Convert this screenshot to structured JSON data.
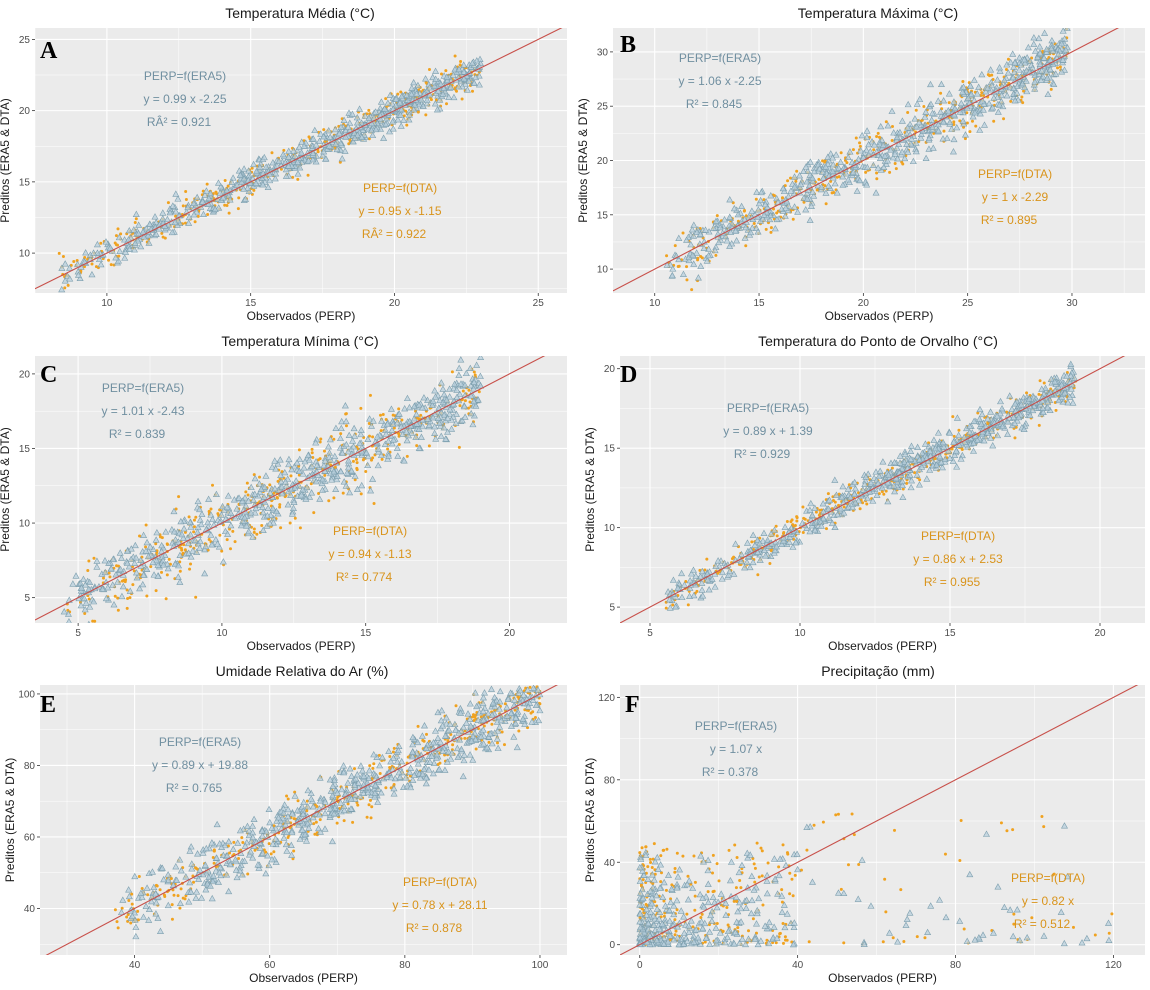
{
  "figure": {
    "x_axis_label": "Observados (PERP)",
    "y_axis_label": "Preditos (ERA5 & DTA)",
    "colors": {
      "era5_fill": "#b8cfdc",
      "era5_stroke": "#7d9fae",
      "era5_text": "#708fa0",
      "dta": "#f0a21f",
      "dta_text": "#d9941c",
      "line": "#c8504a",
      "panel_bg": "#ebebeb",
      "grid": "#ffffff"
    }
  },
  "chart_data": [
    {
      "panel": "A",
      "title": "Temperatura Média (°C)",
      "type": "scatter",
      "xlim": [
        7.5,
        26
      ],
      "ylim": [
        7.2,
        25.8
      ],
      "xticks": [
        "10",
        "15",
        "20",
        "25"
      ],
      "yticks": [
        "10",
        "15",
        "20",
        "25"
      ],
      "xtick_vals": [
        10,
        15,
        20,
        25
      ],
      "ytick_vals": [
        10,
        15,
        20,
        25
      ],
      "data_range": [
        8.3,
        23
      ],
      "spread_era5": 0.55,
      "spread_dta": 0.6,
      "era5": {
        "label": "PERP=f(ERA5)",
        "equation": "y = 0.99 x  -2.25",
        "r2": "RÂ² =  0.921",
        "slope": 0.99,
        "intercept": -2.25
      },
      "dta": {
        "label": "PERP=f(DTA)",
        "equation": "y = 0.95 x  -1.15",
        "r2": "RÂ² =  0.922",
        "slope": 0.95,
        "intercept": -1.15
      }
    },
    {
      "panel": "B",
      "title": "Temperatura Máxima (°C)",
      "type": "scatter",
      "xlim": [
        8,
        33.5
      ],
      "ylim": [
        7.8,
        32.2
      ],
      "xticks": [
        "10",
        "15",
        "20",
        "25",
        "30"
      ],
      "yticks": [
        "10",
        "15",
        "20",
        "25",
        "30"
      ],
      "xtick_vals": [
        10,
        15,
        20,
        25,
        30
      ],
      "ytick_vals": [
        10,
        15,
        20,
        25,
        30
      ],
      "data_range": [
        10.5,
        29.8
      ],
      "spread_era5": 1.2,
      "spread_dta": 1.1,
      "era5": {
        "label": "PERP=f(ERA5)",
        "equation": "y = 1.06 x  -2.25",
        "r2": "R² =  0.845",
        "slope": 1.06,
        "intercept": -2.25
      },
      "dta": {
        "label": "PERP=f(DTA)",
        "equation": "y = 1 x  -2.29",
        "r2": "R² =  0.895",
        "slope": 1.0,
        "intercept": -2.29
      }
    },
    {
      "panel": "C",
      "title": "Temperatura Mínima (°C)",
      "type": "scatter",
      "xlim": [
        3.5,
        22
      ],
      "ylim": [
        3.3,
        21.2
      ],
      "xticks": [
        "5",
        "10",
        "15",
        "20"
      ],
      "yticks": [
        "5",
        "10",
        "15",
        "20"
      ],
      "xtick_vals": [
        5,
        10,
        15,
        20
      ],
      "ytick_vals": [
        5,
        10,
        15,
        20
      ],
      "data_range": [
        4.5,
        19
      ],
      "spread_era5": 1.0,
      "spread_dta": 1.2,
      "era5": {
        "label": "PERP=f(ERA5)",
        "equation": "y = 1.01 x  -2.43",
        "r2": "R² =  0.839",
        "slope": 1.01,
        "intercept": -2.43
      },
      "dta": {
        "label": "PERP=f(DTA)",
        "equation": "y = 0.94 x  -1.13",
        "r2": "R² =  0.774",
        "slope": 0.94,
        "intercept": -1.13
      }
    },
    {
      "panel": "D",
      "title": "Temperatura do Ponto de Orvalho (°C)",
      "type": "scatter",
      "xlim": [
        4,
        21.5
      ],
      "ylim": [
        4,
        20.8
      ],
      "xticks": [
        "5",
        "10",
        "15",
        "20"
      ],
      "yticks": [
        "5",
        "10",
        "15",
        "20"
      ],
      "xtick_vals": [
        5,
        10,
        15,
        20
      ],
      "ytick_vals": [
        5,
        10,
        15,
        20
      ],
      "data_range": [
        5.5,
        19.2
      ],
      "spread_era5": 0.55,
      "spread_dta": 0.5,
      "era5": {
        "label": "PERP=f(ERA5)",
        "equation": "y = 0.89 x + 1.39",
        "r2": "R² =  0.929",
        "slope": 0.89,
        "intercept": 1.39
      },
      "dta": {
        "label": "PERP=f(DTA)",
        "equation": "y = 0.86 x + 2.53",
        "r2": "R² =  0.955",
        "slope": 0.86,
        "intercept": 2.53
      }
    },
    {
      "panel": "E",
      "title": "Umidade Relativa do Ar (%)",
      "type": "scatter",
      "xlim": [
        26,
        104
      ],
      "ylim": [
        27,
        102.5
      ],
      "xticks": [
        "40",
        "60",
        "80",
        "100"
      ],
      "yticks": [
        "40",
        "60",
        "80",
        "100"
      ],
      "xtick_vals": [
        40,
        60,
        80,
        100
      ],
      "ytick_vals": [
        40,
        60,
        80,
        100
      ],
      "data_range": [
        37,
        100
      ],
      "spread_era5": 4.0,
      "spread_dta": 3.5,
      "era5": {
        "label": "PERP=f(ERA5)",
        "equation": "y = 0.89 x + 19.88",
        "r2": "R² =  0.765",
        "slope": 0.89,
        "intercept": 19.88
      },
      "dta": {
        "label": "PERP=f(DTA)",
        "equation": "y = 0.78 x + 28.11",
        "r2": "R² =  0.878",
        "slope": 0.78,
        "intercept": 28.11
      }
    },
    {
      "panel": "F",
      "title": "Precipitação (mm)",
      "type": "scatter",
      "xlim": [
        -5,
        128
      ],
      "ylim": [
        -5,
        126
      ],
      "xticks": [
        "0",
        "40",
        "80",
        "120"
      ],
      "yticks": [
        "0",
        "40",
        "80",
        "120"
      ],
      "xtick_vals": [
        0,
        40,
        80,
        120
      ],
      "ytick_vals": [
        0,
        40,
        80,
        120
      ],
      "data_range": [
        0,
        120
      ],
      "spread_era5": 8,
      "spread_dta": 10,
      "era5": {
        "label": "PERP=f(ERA5)",
        "equation": "y = 1.07 x",
        "r2": "R² =  0.378",
        "slope": 1.07,
        "intercept": 0
      },
      "dta": {
        "label": "PERP=f(DTA)",
        "equation": "y = 0.82 x",
        "r2": "R² =  0.512",
        "slope": 0.82,
        "intercept": 0
      }
    }
  ]
}
